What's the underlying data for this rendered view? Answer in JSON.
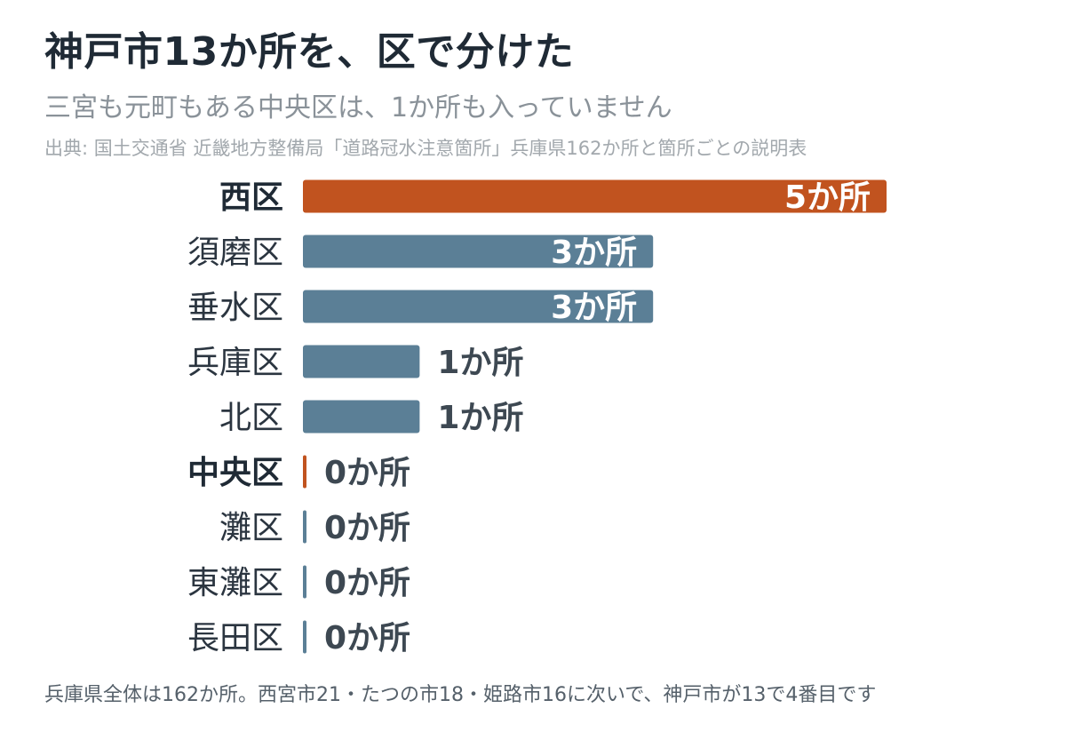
{
  "header": {
    "title": "神戸市13か所を、区で分けた",
    "subtitle": "三宮も元町もある中央区は、1か所も入っていません",
    "source": "出典: 国土交通省 近畿地方整備局「道路冠水注意箇所」兵庫県162か所と箇所ごとの説明表"
  },
  "footnote": "兵庫県全体は162か所。西宮市21・たつの市18・姫路市16に次いで、神戸市が13で4番目です",
  "colors": {
    "highlight": "#c1531f",
    "default": "#5b7f96",
    "label_inside": "#ffffff",
    "label_outside": "#3d4852"
  },
  "chart_data": {
    "type": "bar",
    "orientation": "horizontal",
    "unit": "か所",
    "xlim": [
      0,
      5
    ],
    "grid": false,
    "categories": [
      "西区",
      "須磨区",
      "垂水区",
      "兵庫区",
      "北区",
      "中央区",
      "灘区",
      "東灘区",
      "長田区"
    ],
    "values": [
      5,
      3,
      3,
      1,
      1,
      0,
      0,
      0,
      0
    ],
    "value_labels": [
      "5か所",
      "3か所",
      "3か所",
      "1か所",
      "1か所",
      "0か所",
      "0か所",
      "0か所",
      "0か所"
    ],
    "highlighted": [
      "西区",
      "中央区"
    ]
  }
}
